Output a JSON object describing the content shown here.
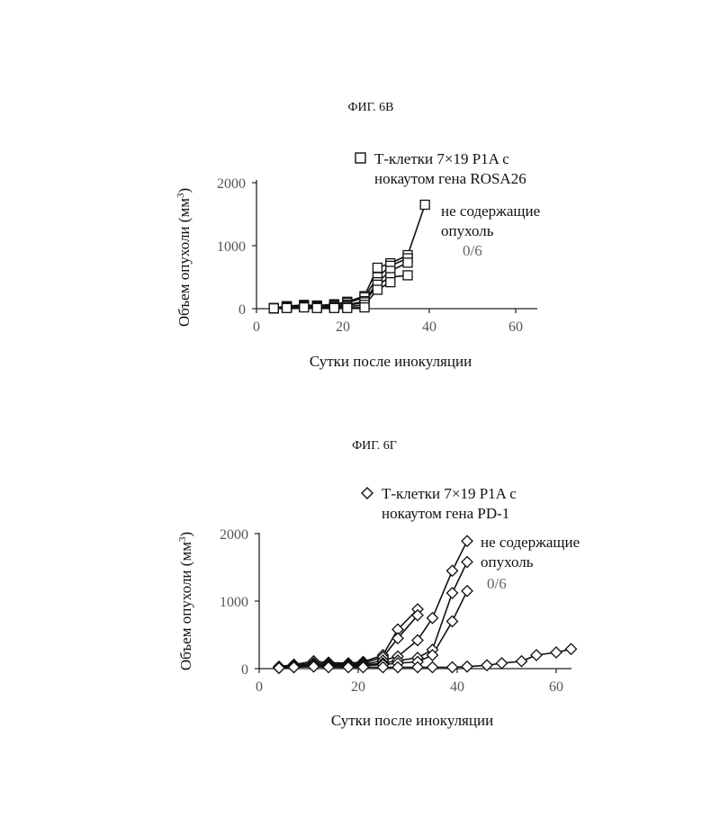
{
  "chart_data": [
    {
      "type": "line",
      "title": "ФИГ. 6В",
      "xlabel": "Сутки после инокуляции",
      "ylabel_main": "Объем опухоли (мм",
      "ylabel_sup": "3",
      "ylabel_end": ")",
      "xlim": [
        0,
        65
      ],
      "ylim": [
        0,
        2000
      ],
      "x_ticks": [
        0,
        20,
        40,
        60
      ],
      "y_ticks": [
        0,
        1000,
        2000
      ],
      "marker": "square",
      "legend": [
        "Т-клетки 7×19 P1A с",
        "нокаутом гена ROSA26"
      ],
      "annotation": [
        "не содержащие",
        "опухоль"
      ],
      "ratio": "0/6",
      "series": [
        {
          "x": [
            4,
            7,
            11,
            14,
            18,
            21,
            25,
            28,
            31,
            35,
            39
          ],
          "y": [
            10,
            40,
            60,
            50,
            70,
            110,
            200,
            650,
            720,
            850,
            1650
          ]
        },
        {
          "x": [
            4,
            7,
            11,
            14,
            18,
            21,
            25,
            28,
            31,
            35
          ],
          "y": [
            10,
            30,
            50,
            40,
            60,
            90,
            180,
            500,
            680,
            800
          ]
        },
        {
          "x": [
            4,
            7,
            11,
            14,
            18,
            21,
            25,
            28,
            31,
            35
          ],
          "y": [
            5,
            20,
            40,
            30,
            40,
            60,
            120,
            420,
            600,
            730
          ]
        },
        {
          "x": [
            4,
            7,
            11,
            14,
            18,
            21,
            25,
            28,
            31,
            35
          ],
          "y": [
            5,
            20,
            40,
            30,
            40,
            50,
            100,
            380,
            500,
            530
          ]
        },
        {
          "x": [
            4,
            7,
            11,
            14,
            18,
            21,
            25,
            28,
            31
          ],
          "y": [
            5,
            15,
            30,
            20,
            20,
            30,
            60,
            300,
            420
          ]
        },
        {
          "x": [
            4,
            7,
            11,
            14,
            18,
            21,
            25
          ],
          "y": [
            5,
            10,
            20,
            10,
            10,
            10,
            20
          ]
        }
      ]
    },
    {
      "type": "line",
      "title": "ФИГ. 6Г",
      "xlabel": "Сутки после инокуляции",
      "ylabel_main": "Объем опухоли (мм",
      "ylabel_sup": "3",
      "ylabel_end": ")",
      "xlim": [
        0,
        65
      ],
      "ylim": [
        0,
        2000
      ],
      "x_ticks": [
        0,
        20,
        40,
        60
      ],
      "y_ticks": [
        0,
        1000,
        2000
      ],
      "marker": "diamond",
      "legend": [
        "Т-клетки 7×19 P1A с",
        "нокаутом гена PD-1"
      ],
      "annotation": [
        "не содержащие",
        "опухоль"
      ],
      "ratio": "0/6",
      "series": [
        {
          "x": [
            4,
            7,
            11,
            14,
            18,
            21,
            25,
            28,
            32
          ],
          "y": [
            30,
            60,
            110,
            90,
            80,
            100,
            200,
            580,
            880
          ]
        },
        {
          "x": [
            4,
            7,
            11,
            14,
            18,
            21,
            25,
            28,
            32
          ],
          "y": [
            20,
            50,
            80,
            70,
            60,
            80,
            170,
            450,
            790
          ]
        },
        {
          "x": [
            4,
            7,
            11,
            14,
            18,
            21,
            25,
            28,
            32,
            35,
            39,
            42
          ],
          "y": [
            20,
            40,
            70,
            60,
            50,
            60,
            120,
            180,
            420,
            750,
            1450,
            1890
          ]
        },
        {
          "x": [
            4,
            7,
            11,
            14,
            18,
            21,
            25,
            28,
            32,
            35,
            39,
            42
          ],
          "y": [
            10,
            30,
            50,
            40,
            40,
            50,
            80,
            120,
            160,
            280,
            1120,
            1580
          ]
        },
        {
          "x": [
            4,
            7,
            11,
            14,
            18,
            21,
            25,
            28,
            32,
            35,
            39,
            42
          ],
          "y": [
            10,
            20,
            40,
            30,
            30,
            40,
            60,
            80,
            100,
            200,
            700,
            1150
          ]
        },
        {
          "x": [
            4,
            7,
            11,
            14,
            18,
            21,
            25,
            28,
            32,
            35,
            39,
            42,
            46,
            49,
            53,
            56,
            60,
            63
          ],
          "y": [
            10,
            20,
            30,
            20,
            20,
            20,
            20,
            20,
            20,
            20,
            20,
            30,
            50,
            80,
            110,
            200,
            240,
            290
          ]
        }
      ]
    }
  ]
}
